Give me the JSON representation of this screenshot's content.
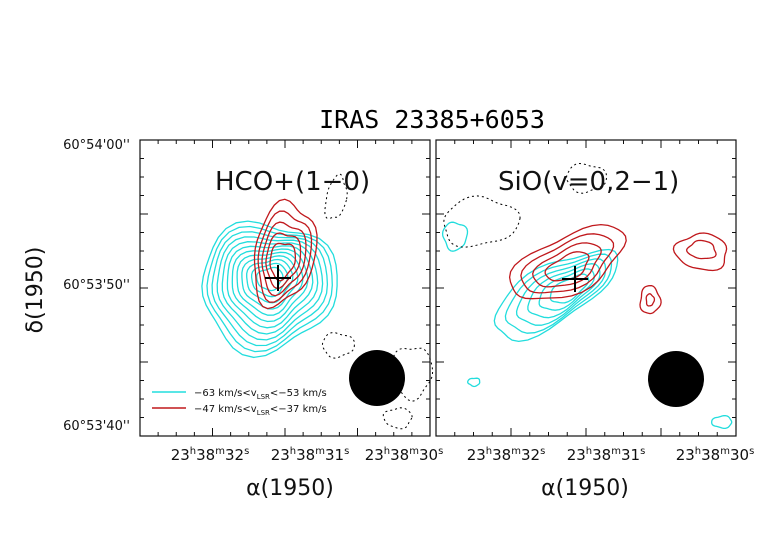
{
  "figure_title": "IRAS 23385+6053",
  "y_axis_label": "δ(1950)",
  "y_ticks": [
    "60°54'00''",
    "60°53'50''",
    "60°53'40''"
  ],
  "colors": {
    "blue_contour": "#22dddd",
    "red_contour": "#c0181c",
    "negative": "#000000",
    "beam": "#000000"
  },
  "chart_data": [
    {
      "type": "contour",
      "panel": "left",
      "line_label": "HCO+(1−0)",
      "xlabel": "α(1950)",
      "x_ticks": [
        "23h38m32s",
        "23h38m31s",
        "23h38m30s"
      ],
      "legend": [
        "−63 km/s<vLSR<−53 km/s",
        "−47 km/s<vLSR<−37 km/s"
      ],
      "blue_levels": 12,
      "red_levels": 5,
      "source_position": "cross at field centre",
      "beam": "filled circle, bottom-right"
    },
    {
      "type": "contour",
      "panel": "right",
      "line_label": "SiO(v=0,2−1)",
      "xlabel": "α(1950)",
      "x_ticks": [
        "23h38m32s",
        "23h38m31s",
        "23h38m30s"
      ],
      "blue_levels": 6,
      "red_levels": 4,
      "source_position": "cross at field centre",
      "beam": "filled circle, bottom-right"
    }
  ],
  "legend_parts": {
    "blue": {
      "pre": "−63 km/s<v",
      "sub": "LSR",
      "post": "<−53 km/s"
    },
    "red": {
      "pre": "−47 km/s<v",
      "sub": "LSR",
      "post": "<−37 km/s"
    }
  },
  "tick_parts": [
    {
      "h": "23",
      "m": "38",
      "s": "32"
    },
    {
      "h": "23",
      "m": "38",
      "s": "31"
    },
    {
      "h": "23",
      "m": "38",
      "s": "30"
    }
  ]
}
